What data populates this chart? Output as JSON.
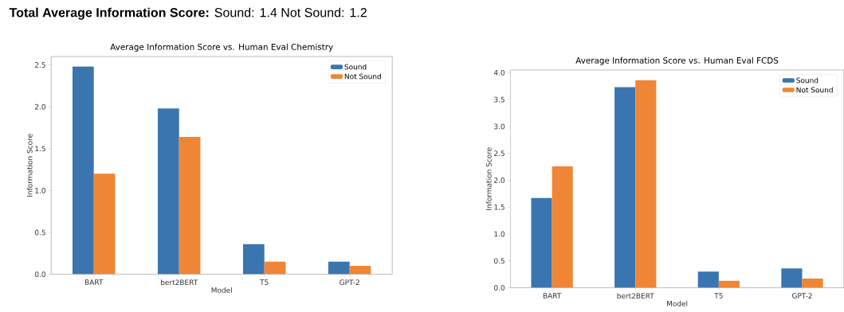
{
  "chart_data": [
    {
      "type": "bar",
      "title": "Average Information Score vs. Human Eval Chemistry",
      "xlabel": "Model",
      "ylabel": "Information Score",
      "annotations": [
        "**Total Average Information Score:** Sound: 1.4   Not Sound: 1.2"
      ],
      "categories": [
        "BART",
        "bert2BERT",
        "T5",
        "GPT-2"
      ],
      "series": [
        {
          "name": "Sound",
          "color": "#3a75af",
          "values": [
            2.48,
            1.98,
            0.36,
            0.15
          ]
        },
        {
          "name": "Not Sound",
          "color": "#ef8636",
          "values": [
            1.2,
            1.64,
            0.15,
            0.1
          ]
        }
      ],
      "ylim": [
        0,
        2.6
      ],
      "yticks": [
        {
          "value": 0,
          "label": "0.0"
        },
        {
          "value": 0.5,
          "label": "0.5"
        },
        {
          "value": 1,
          "label": "1.0"
        },
        {
          "value": 1.5,
          "label": "1.5"
        },
        {
          "value": 2,
          "label": "2.0"
        },
        {
          "value": 2.5,
          "label": "2.5"
        }
      ],
      "legend": "top right"
    },
    {
      "type": "bar",
      "title": "Average Information Score vs. Human Eval FCDS",
      "xlabel": "Model",
      "ylabel": "Information Score",
      "categories": [
        "BART",
        "bert2BERT",
        "T5",
        "GPT-2"
      ],
      "series": [
        {
          "name": "Sound",
          "color": "#3a75af",
          "values": [
            1.67,
            3.73,
            0.3,
            0.36
          ]
        },
        {
          "name": "Not Sound",
          "color": "#ef8636",
          "values": [
            2.26,
            3.86,
            0.13,
            0.17
          ]
        }
      ],
      "ylim": [
        0,
        4.05
      ],
      "yticks": [
        {
          "value": 0,
          "label": "0.0"
        },
        {
          "value": 0.5,
          "label": "0.5"
        },
        {
          "value": 1,
          "label": "1.0"
        },
        {
          "value": 1.5,
          "label": "1.5"
        },
        {
          "value": 2,
          "label": "2.0"
        },
        {
          "value": 2.5,
          "label": "2.5"
        },
        {
          "value": 3,
          "label": "3.0"
        },
        {
          "value": 3.5,
          "label": "3.5"
        },
        {
          "value": 4,
          "label": "4.0"
        }
      ],
      "legend": "top right"
    }
  ]
}
